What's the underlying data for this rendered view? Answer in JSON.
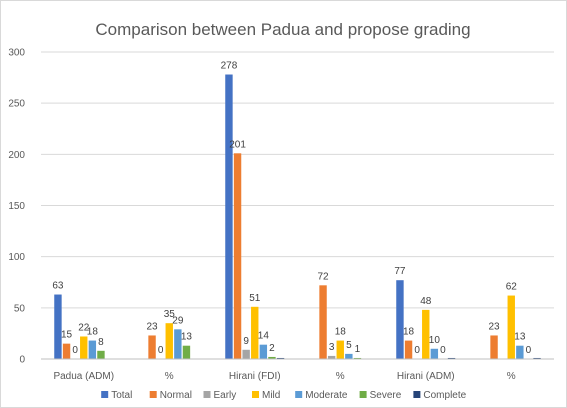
{
  "chart_data": {
    "type": "bar",
    "title": "Comparison between Padua and propose grading",
    "categories": [
      "Padua (ADM)",
      "%",
      "Hirani (FDI)",
      "%",
      "Hirani (ADM)",
      "%"
    ],
    "ylim": [
      0,
      300
    ],
    "yticks": [
      0,
      50,
      100,
      150,
      200,
      250,
      300
    ],
    "grid": true,
    "legend_position": "bottom",
    "series": [
      {
        "name": "Total",
        "color": "#4472C4",
        "values": [
          63,
          null,
          278,
          null,
          77,
          null
        ],
        "labels": [
          "63",
          "",
          "278",
          "",
          "77",
          ""
        ]
      },
      {
        "name": "Normal",
        "color": "#ED7D31",
        "values": [
          15,
          23,
          201,
          72,
          18,
          23
        ],
        "labels": [
          "15",
          "23",
          "201",
          "72",
          "18",
          "23"
        ]
      },
      {
        "name": "Early",
        "color": "#A5A5A5",
        "values": [
          0,
          0,
          9,
          3,
          0,
          null
        ],
        "labels": [
          "0",
          "0",
          "9",
          "3",
          "0",
          ""
        ]
      },
      {
        "name": "Mild",
        "color": "#FFC000",
        "values": [
          22,
          35,
          51,
          18,
          48,
          62
        ],
        "labels": [
          "22",
          "35",
          "51",
          "18",
          "48",
          "62"
        ]
      },
      {
        "name": "Moderate",
        "color": "#5B9BD5",
        "values": [
          18,
          29,
          14,
          5,
          10,
          13
        ],
        "labels": [
          "18",
          "29",
          "14",
          "5",
          "10",
          "13"
        ]
      },
      {
        "name": "Severe",
        "color": "#70AD47",
        "values": [
          8,
          13,
          2,
          1,
          0,
          0
        ],
        "labels": [
          "8",
          "13",
          "2",
          "1",
          "0",
          "0"
        ]
      },
      {
        "name": "Complete",
        "color": "#264478",
        "values": [
          null,
          null,
          1,
          null,
          1,
          1
        ],
        "labels": [
          "",
          "",
          "",
          "",
          "",
          ""
        ]
      }
    ]
  }
}
